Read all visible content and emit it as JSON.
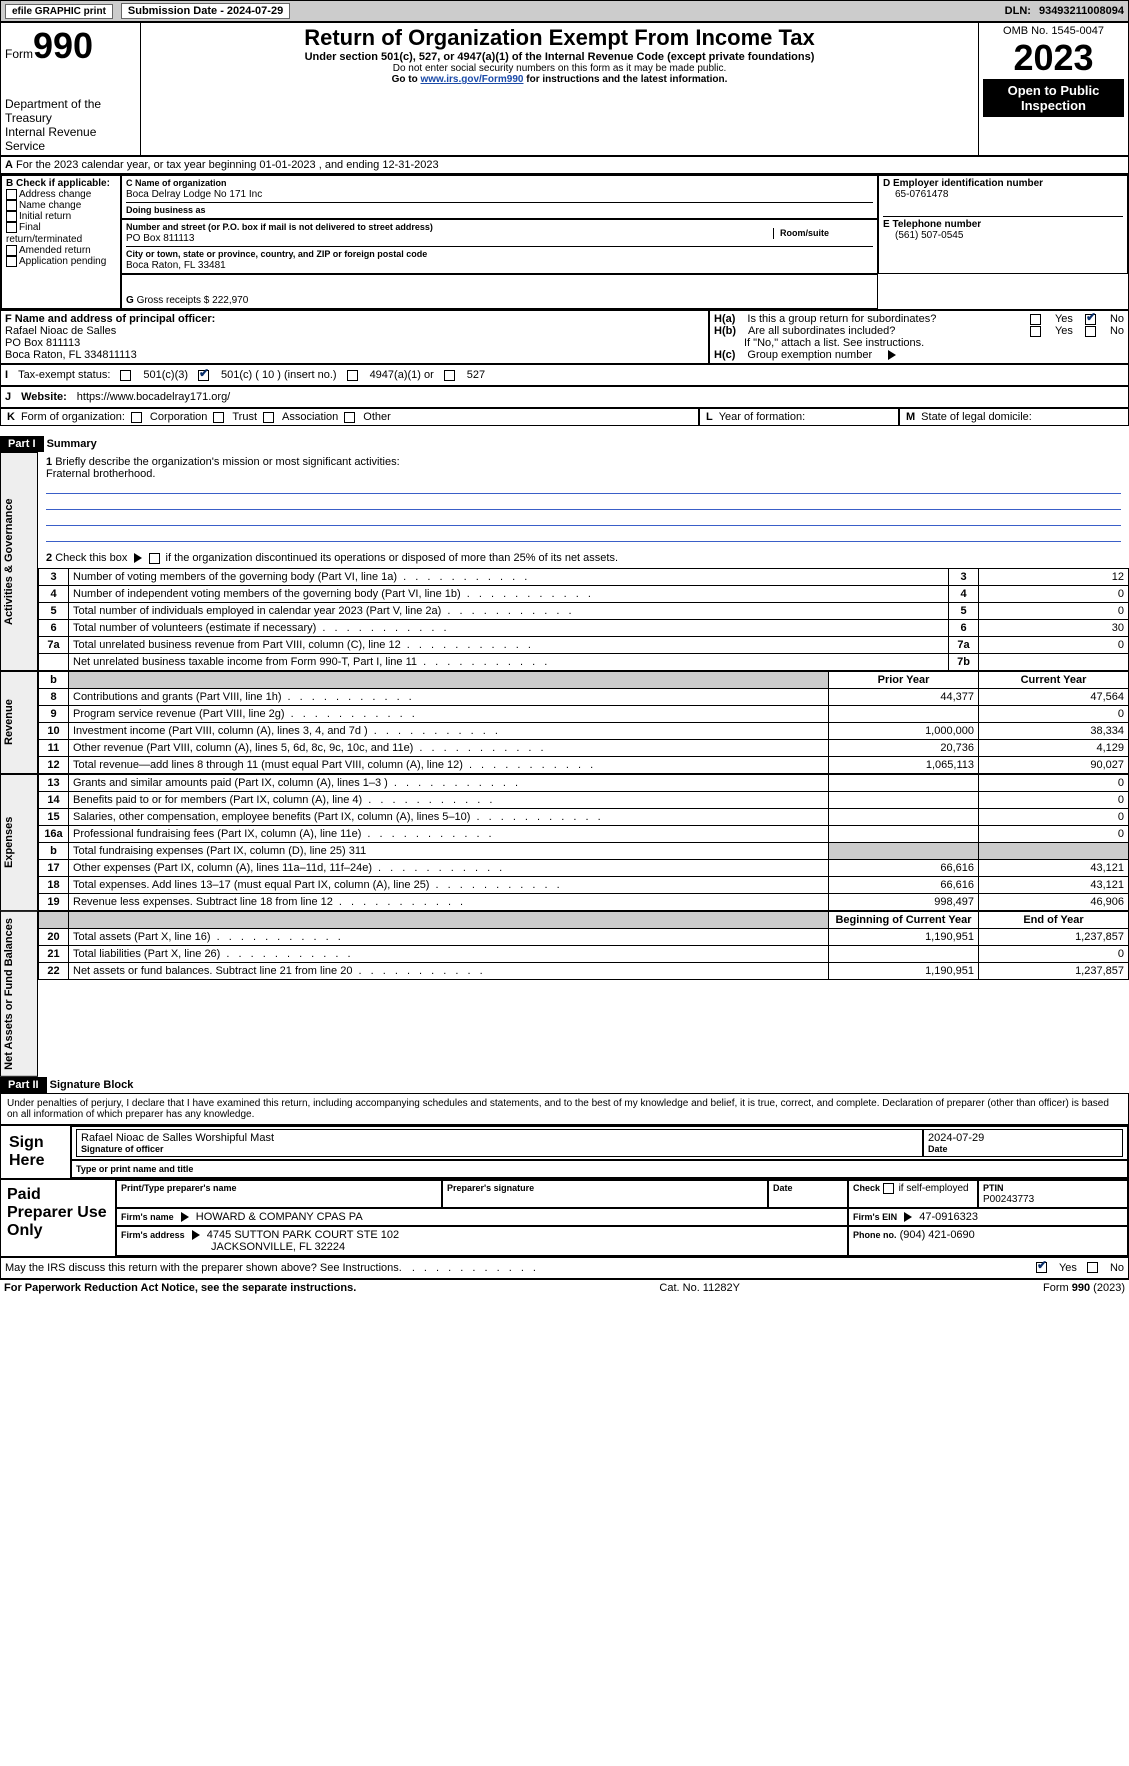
{
  "top_bar": {
    "efile": "efile GRAPHIC print",
    "submission": "Submission Date - 2024-07-29",
    "dln_label": "DLN:",
    "dln": "93493211008094"
  },
  "header": {
    "form_label": "Form",
    "form_number": "990",
    "dept": "Department of the Treasury",
    "irs": "Internal Revenue Service",
    "title": "Return of Organization Exempt From Income Tax",
    "subtitle": "Under section 501(c), 527, or 4947(a)(1) of the Internal Revenue Code (except private foundations)",
    "note1": "Do not enter social security numbers on this form as it may be made public.",
    "note2_pre": "Go to ",
    "note2_link": "www.irs.gov/Form990",
    "note2_post": " for instructions and the latest information.",
    "omb": "OMB No. 1545-0047",
    "year": "2023",
    "open": "Open to Public Inspection"
  },
  "section_a": {
    "text": "For the 2023 calendar year, or tax year beginning 01-01-2023   , and ending 12-31-2023",
    "a_label": "A"
  },
  "entity": {
    "b_label": "B Check if applicable:",
    "b_items": [
      "Address change",
      "Name change",
      "Initial return",
      "Final return/terminated",
      "Amended return",
      "Application pending"
    ],
    "c_label": "C Name of organization",
    "c_name": "Boca Delray Lodge No 171 Inc",
    "dba_label": "Doing business as",
    "addr_label": "Number and street (or P.O. box if mail is not delivered to street address)",
    "addr": "PO Box 811113",
    "room_label": "Room/suite",
    "city_label": "City or town, state or province, country, and ZIP or foreign postal code",
    "city": "Boca Raton, FL  33481",
    "d_label": "D Employer identification number",
    "d_ein": "65-0761478",
    "e_label": "E Telephone number",
    "e_phone": "(561) 507-0545",
    "g_label": "G",
    "g_text": "Gross receipts $ 222,970",
    "f_label": "F  Name and address of principal officer:",
    "f_name": "Rafael Nioac de Salles",
    "f_addr1": "PO Box 811113",
    "f_addr2": "Boca Raton, FL  334811113",
    "ha_label": "H(a)",
    "ha_text": "Is this a group return for subordinates?",
    "ha_yes": "Yes",
    "ha_no": "No",
    "hb_label": "H(b)",
    "hb_text": "Are all subordinates included?",
    "hb_note": "If \"No,\" attach a list. See instructions.",
    "hc_label": "H(c)",
    "hc_text": "Group exemption number",
    "i_label": "I",
    "i_text": "Tax-exempt status:",
    "i_501c3": "501(c)(3)",
    "i_501c": "501(c) ( 10 ) (insert no.)",
    "i_4947": "4947(a)(1) or",
    "i_527": "527",
    "j_label": "J",
    "j_text": "Website:",
    "j_url": "https://www.bocadelray171.org/",
    "k_label": "K",
    "k_text": "Form of organization:",
    "k_items": [
      "Corporation",
      "Trust",
      "Association",
      "Other"
    ],
    "l_label": "L",
    "l_text": "Year of formation:",
    "m_label": "M",
    "m_text": "State of legal domicile:"
  },
  "part1": {
    "header": "Part I",
    "title": "Summary",
    "side_ag": "Activities & Governance",
    "side_rev": "Revenue",
    "side_exp": "Expenses",
    "side_net": "Net Assets or Fund Balances",
    "line1": "Briefly describe the organization's mission or most significant activities:",
    "line1_val": "Fraternal brotherhood.",
    "line2": "Check this box",
    "line2_post": "if the organization discontinued its operations or disposed of more than 25% of its net assets.",
    "rows_gov": [
      {
        "n": "3",
        "label": "Number of voting members of the governing body (Part VI, line 1a)",
        "code": "3",
        "val": "12"
      },
      {
        "n": "4",
        "label": "Number of independent voting members of the governing body (Part VI, line 1b)",
        "code": "4",
        "val": "0"
      },
      {
        "n": "5",
        "label": "Total number of individuals employed in calendar year 2023 (Part V, line 2a)",
        "code": "5",
        "val": "0"
      },
      {
        "n": "6",
        "label": "Total number of volunteers (estimate if necessary)",
        "code": "6",
        "val": "30"
      },
      {
        "n": "7a",
        "label": "Total unrelated business revenue from Part VIII, column (C), line 12",
        "code": "7a",
        "val": "0"
      },
      {
        "n": "",
        "label": "Net unrelated business taxable income from Form 990-T, Part I, line 11",
        "code": "7b",
        "val": ""
      }
    ],
    "col_b": "b",
    "col_prior": "Prior Year",
    "col_current": "Current Year",
    "rows_rev": [
      {
        "n": "8",
        "label": "Contributions and grants (Part VIII, line 1h)",
        "prior": "44,377",
        "cur": "47,564"
      },
      {
        "n": "9",
        "label": "Program service revenue (Part VIII, line 2g)",
        "prior": "",
        "cur": "0"
      },
      {
        "n": "10",
        "label": "Investment income (Part VIII, column (A), lines 3, 4, and 7d )",
        "prior": "1,000,000",
        "cur": "38,334"
      },
      {
        "n": "11",
        "label": "Other revenue (Part VIII, column (A), lines 5, 6d, 8c, 9c, 10c, and 11e)",
        "prior": "20,736",
        "cur": "4,129"
      },
      {
        "n": "12",
        "label": "Total revenue—add lines 8 through 11 (must equal Part VIII, column (A), line 12)",
        "prior": "1,065,113",
        "cur": "90,027"
      }
    ],
    "rows_exp": [
      {
        "n": "13",
        "label": "Grants and similar amounts paid (Part IX, column (A), lines 1–3 )",
        "prior": "",
        "cur": "0"
      },
      {
        "n": "14",
        "label": "Benefits paid to or for members (Part IX, column (A), line 4)",
        "prior": "",
        "cur": "0"
      },
      {
        "n": "15",
        "label": "Salaries, other compensation, employee benefits (Part IX, column (A), lines 5–10)",
        "prior": "",
        "cur": "0"
      },
      {
        "n": "16a",
        "label": "Professional fundraising fees (Part IX, column (A), line 11e)",
        "prior": "",
        "cur": "0"
      }
    ],
    "row_16b_n": "b",
    "row_16b": "Total fundraising expenses (Part IX, column (D), line 25) 311",
    "rows_exp2": [
      {
        "n": "17",
        "label": "Other expenses (Part IX, column (A), lines 11a–11d, 11f–24e)",
        "prior": "66,616",
        "cur": "43,121"
      },
      {
        "n": "18",
        "label": "Total expenses. Add lines 13–17 (must equal Part IX, column (A), line 25)",
        "prior": "66,616",
        "cur": "43,121"
      },
      {
        "n": "19",
        "label": "Revenue less expenses. Subtract line 18 from line 12",
        "prior": "998,497",
        "cur": "46,906"
      }
    ],
    "col_begin": "Beginning of Current Year",
    "col_end": "End of Year",
    "rows_net": [
      {
        "n": "20",
        "label": "Total assets (Part X, line 16)",
        "prior": "1,190,951",
        "cur": "1,237,857"
      },
      {
        "n": "21",
        "label": "Total liabilities (Part X, line 26)",
        "prior": "",
        "cur": "0"
      },
      {
        "n": "22",
        "label": "Net assets or fund balances. Subtract line 21 from line 20",
        "prior": "1,190,951",
        "cur": "1,237,857"
      }
    ]
  },
  "part2": {
    "header": "Part II",
    "title": "Signature Block",
    "declaration": "Under penalties of perjury, I declare that I have examined this return, including accompanying schedules and statements, and to the best of my knowledge and belief, it is true, correct, and complete. Declaration of preparer (other than officer) is based on all information of which preparer has any knowledge.",
    "sign_here": "Sign Here",
    "sig_date": "2024-07-29",
    "sig_officer_label": "Signature of officer",
    "sig_officer": "Rafael Nioac de Salles  Worshipful Mast",
    "sig_date_label": "Date",
    "sig_type_label": "Type or print name and title",
    "paid_prep": "Paid Preparer Use Only",
    "prep_name_label": "Print/Type preparer's name",
    "prep_sig_label": "Preparer's signature",
    "prep_date_label": "Date",
    "prep_check_label": "Check",
    "prep_check_post": "if self-employed",
    "prep_ptin_label": "PTIN",
    "prep_ptin": "P00243773",
    "firm_name_label": "Firm's name",
    "firm_name": "HOWARD & COMPANY CPAS PA",
    "firm_ein_label": "Firm's EIN",
    "firm_ein": "47-0916323",
    "firm_addr_label": "Firm's address",
    "firm_addr1": "4745 SUTTON PARK COURT STE 102",
    "firm_addr2": "JACKSONVILLE, FL  32224",
    "firm_phone_label": "Phone no.",
    "firm_phone": "(904) 421-0690",
    "discuss": "May the IRS discuss this return with the preparer shown above? See Instructions.",
    "yes": "Yes",
    "no": "No"
  },
  "footer": {
    "pra": "For Paperwork Reduction Act Notice, see the separate instructions.",
    "cat": "Cat. No. 11282Y",
    "form": "Form 990 (2023)"
  },
  "colors": {
    "link": "#1a4aa8",
    "grey": "#cccccc",
    "black": "#000000",
    "underline": "#3a5fc8"
  }
}
